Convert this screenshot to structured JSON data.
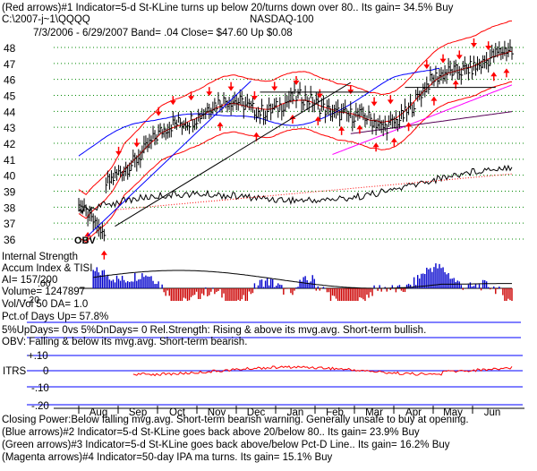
{
  "header": {
    "line1": "(Red arrows)#1 Indicator=5-d St-KLine turns up below 20/turns down over 80.. Its gain= 34.5% Buy",
    "path": "C:\\2007-j~1\\QQQQ",
    "index_name": "NASDAQ-100",
    "period_line": "7/3/2006 - 6/29/2007  Band= .04   Close= $47.60   Up $0.08"
  },
  "price_labels": [
    "48",
    "47",
    "46",
    "45",
    "44",
    "43",
    "42",
    "41",
    "40",
    "39",
    "38",
    "37",
    "36"
  ],
  "obv_label": "OBV",
  "strength": {
    "title": "Internal Strength",
    "accum": "Accum Index & TISI",
    "ai": "AI= 157/200",
    "volume": "Volume= 1247897",
    "volratio": "Vol/Vol 50 DA= 1.0",
    "pctup": "Pct.of Days Up= 57.8%",
    "zero": ".00",
    "neg": "-.20"
  },
  "notes": {
    "updays": "5%UpDays= 0vs 5%DnDays= 0   Rel.Strength: Rising & above its mvg.avg. Short-term bullish.",
    "obv": "OBV: Falling & below its mvg.avg. Short-term bearish."
  },
  "itrs": {
    "title": "ITRS",
    "ticks": [
      "+.10",
      "0",
      "-.10",
      "-.20"
    ]
  },
  "months": [
    "Aug",
    "Sep",
    "Oct",
    "Nov",
    "Dec",
    "Jan",
    "Feb",
    "Mar",
    "Apr",
    "May",
    "Jun"
  ],
  "footer": [
    "Closing Power:Below falling mvg.avg. Short-term bearish warning. Generally unsafe to buy at opening.",
    "(Blue arrows)#2 Indicator=5-d St-KLine goes back above 20/below 80.. Its gain= 23.9% Buy",
    "(Green arrows)#3 Indicator=5-d St-KLine goes back above/below Pct-D Line.. Its gain= 16.2% Buy",
    "(Magenta arrows)#4 Indicator=50-day IPA ma turns. Its gain= 15.1% Buy"
  ],
  "colors": {
    "price": "#000000",
    "band": "#ff0000",
    "ma_blue": "#0000ff",
    "ma_magenta": "#ff00ff",
    "accum_fill": "#0000cc",
    "accum_neg": "#cc0000",
    "itrs_line": "#ff0000",
    "grid_dots": "#008800",
    "arrow": "#ff0000",
    "guide": "#0000ff"
  },
  "chart_data": {
    "type": "line",
    "title": "NASDAQ-100",
    "xlabel": "",
    "ylabel": "",
    "x_categories": [
      "Aug",
      "Sep",
      "Oct",
      "Nov",
      "Dec",
      "Jan",
      "Feb",
      "Mar",
      "Apr",
      "May",
      "Jun"
    ],
    "ylim": [
      35.5,
      48.5
    ],
    "y_ticks": [
      36,
      37,
      38,
      39,
      40,
      41,
      42,
      43,
      44,
      45,
      46,
      47,
      48
    ],
    "close_monthly": {
      "Aug": 36.9,
      "Sep": 40.6,
      "Oct": 42.6,
      "Nov": 44.5,
      "Dec": 44.2,
      "Jan": 44.6,
      "Feb": 44.2,
      "Mar": 42.8,
      "Apr": 45.4,
      "May": 47.0,
      "Jun": 47.6
    },
    "last_close": 47.6
  }
}
